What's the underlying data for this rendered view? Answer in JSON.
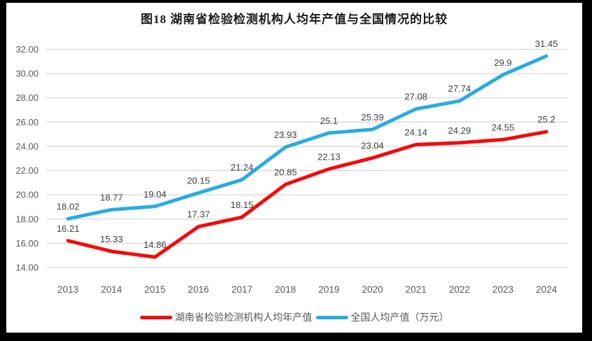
{
  "title": "图18 湖南省检验检测机构人均年产值与全国情况的比较",
  "colors": {
    "hunan_line": "#F40B0B",
    "national_line": "#29ABE2",
    "gridline": "#D9D9D9",
    "axis_text": "#595959",
    "data_label_text": "#404040",
    "title_text": "#1A1A1A",
    "frame": "#000000",
    "background": "#FFFFFF"
  },
  "chart_data": {
    "type": "line",
    "title": "图18 湖南省检验检测机构人均年产值与全国情况的比较",
    "categories": [
      "2013",
      "2014",
      "2015",
      "2016",
      "2017",
      "2018",
      "2019",
      "2020",
      "2021",
      "2022",
      "2023",
      "2024"
    ],
    "series": [
      {
        "name": "湖南省检验检测机构人均年产值",
        "color": "#F40B0B",
        "values": [
          16.21,
          15.33,
          14.86,
          17.37,
          18.15,
          20.85,
          22.13,
          23.04,
          24.14,
          24.29,
          24.55,
          25.2
        ]
      },
      {
        "name": "全国人均产值（万元）",
        "color": "#29ABE2",
        "values": [
          18.02,
          18.77,
          19.04,
          20.15,
          21.24,
          23.93,
          25.1,
          25.39,
          27.08,
          27.74,
          29.9,
          31.45
        ]
      }
    ],
    "xlabel": "",
    "ylabel": "",
    "ylim": [
      14,
      32
    ],
    "y_tick_labels": [
      "14.00",
      "16.00",
      "18.00",
      "20.00",
      "22.00",
      "24.00",
      "26.00",
      "28.00",
      "30.00",
      "32.00"
    ],
    "grid": true,
    "data_labels": true,
    "legend_position": "bottom"
  }
}
